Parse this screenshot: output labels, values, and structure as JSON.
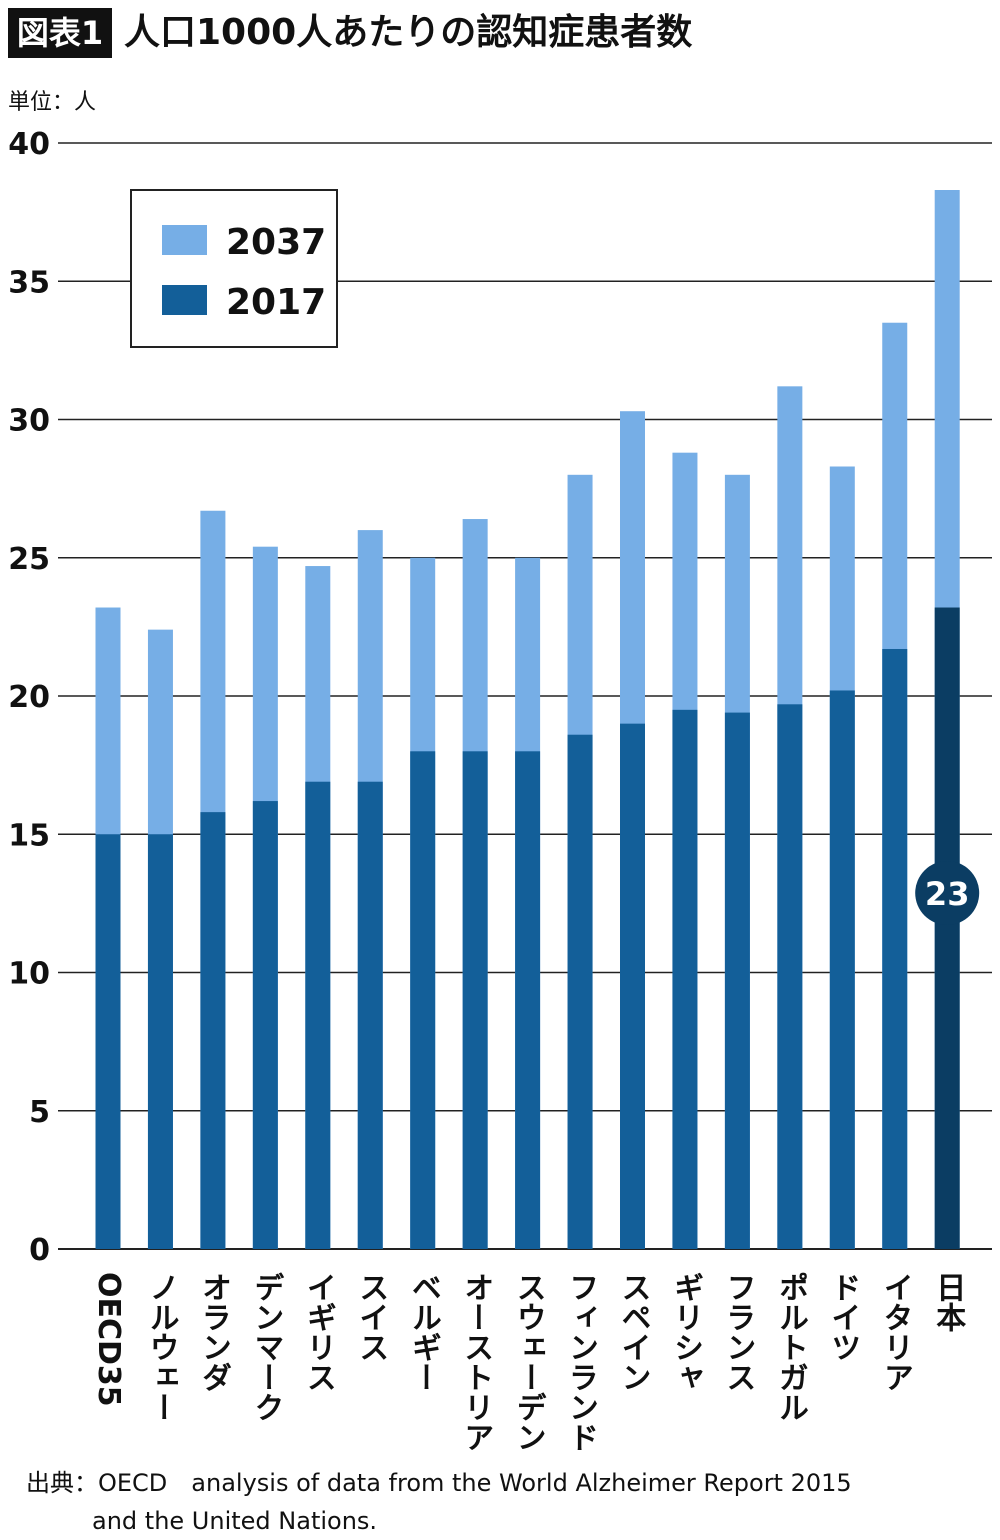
{
  "header": {
    "tag": "図表1",
    "title": "人口1000人あたりの認知症患者数",
    "unit": "単位：人"
  },
  "chart_data": {
    "type": "bar",
    "stacked": false,
    "title": "人口1000人あたりの認知症患者数",
    "ylabel": "単位：人",
    "ylim": [
      0,
      40
    ],
    "yticks": [
      0,
      5,
      10,
      15,
      20,
      25,
      30,
      35,
      40
    ],
    "grid": true,
    "legend_position": "top-left",
    "categories": [
      "OECD35",
      "ノルウェー",
      "オランダ",
      "デンマーク",
      "イギリス",
      "スイス",
      "ベルギー",
      "オーストリア",
      "スウェーデン",
      "フィンランド",
      "スペイン",
      "ギリシャ",
      "フランス",
      "ポルトガル",
      "ドイツ",
      "イタリア",
      "日本"
    ],
    "series": [
      {
        "name": "2037",
        "color": "#76aee6",
        "values": [
          23.2,
          22.4,
          26.7,
          25.4,
          24.7,
          26.0,
          25.0,
          26.4,
          25.0,
          28.0,
          30.3,
          28.8,
          28.0,
          31.2,
          28.3,
          33.5,
          38.3
        ]
      },
      {
        "name": "2017",
        "color": "#135f99",
        "values": [
          15.0,
          15.0,
          15.8,
          16.2,
          16.9,
          16.9,
          18.0,
          18.0,
          18.0,
          18.6,
          19.0,
          19.5,
          19.4,
          19.7,
          20.2,
          21.7,
          23.2
        ]
      }
    ],
    "highlight": {
      "category": "日本",
      "color": "#0b3d63",
      "label": "23"
    }
  },
  "footer": {
    "line1": "出典：OECD　analysis of data from the World Alzheimer Report 2015",
    "line2": "and the United Nations."
  }
}
